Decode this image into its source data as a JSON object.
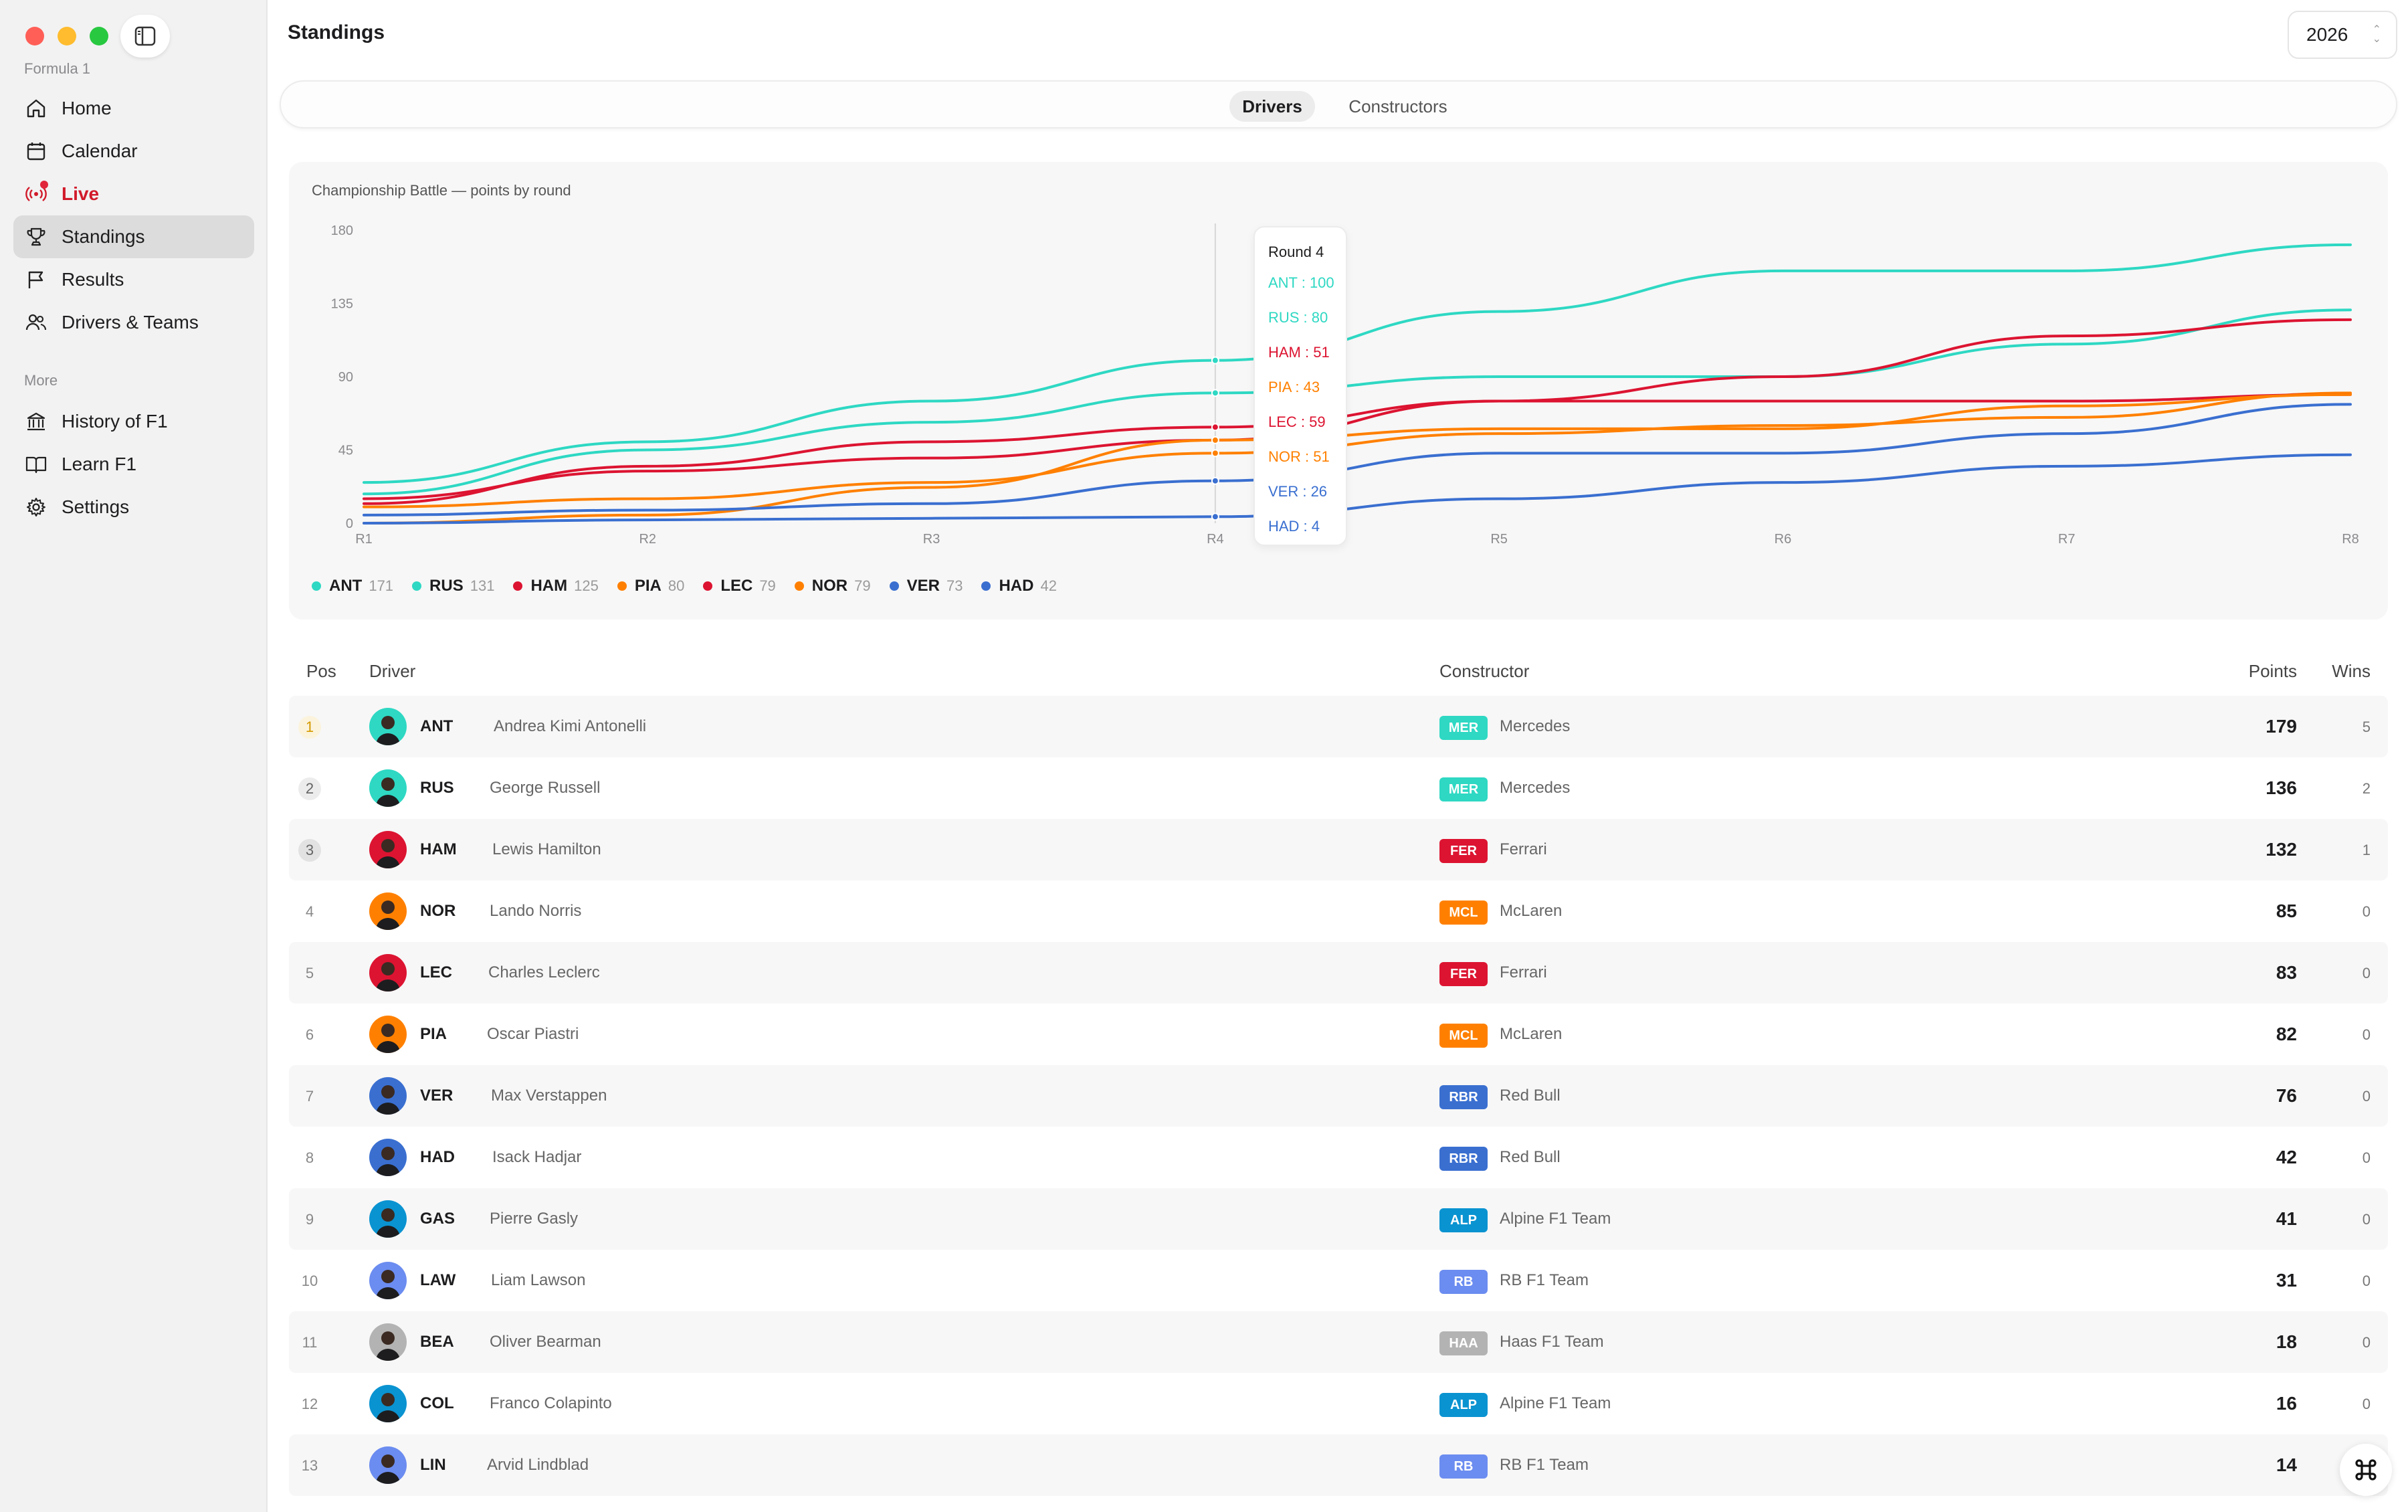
{
  "sidebar": {
    "app_name": "Formula 1",
    "nav": [
      {
        "label": "Home",
        "icon": "home-icon"
      },
      {
        "label": "Calendar",
        "icon": "calendar-icon"
      },
      {
        "label": "Live",
        "icon": "broadcast-icon"
      },
      {
        "label": "Standings",
        "icon": "trophy-icon"
      },
      {
        "label": "Results",
        "icon": "flag-icon"
      },
      {
        "label": "Drivers & Teams",
        "icon": "people-icon"
      }
    ],
    "more_label": "More",
    "more": [
      {
        "label": "History of F1",
        "icon": "museum-icon"
      },
      {
        "label": "Learn F1",
        "icon": "book-icon"
      },
      {
        "label": "Settings",
        "icon": "gear-icon"
      }
    ]
  },
  "header": {
    "title": "Standings",
    "year": "2026"
  },
  "tabs": {
    "drivers": "Drivers",
    "constructors": "Constructors"
  },
  "chart_data": {
    "type": "line",
    "title": "Championship Battle — points by round",
    "x": [
      "R1",
      "R2",
      "R3",
      "R4",
      "R5",
      "R6",
      "R7",
      "R8"
    ],
    "y_ticks": [
      "0",
      "45",
      "90",
      "135",
      "180"
    ],
    "ylim": [
      0,
      180
    ],
    "grid": false,
    "legend": "bottom-left",
    "series": [
      {
        "name": "ANT",
        "total": "171",
        "color": "#2ed8c3",
        "values": [
          25,
          50,
          75,
          100,
          130,
          155,
          155,
          171
        ]
      },
      {
        "name": "RUS",
        "total": "131",
        "color": "#2ed8c3",
        "values": [
          18,
          45,
          62,
          80,
          90,
          90,
          110,
          131
        ]
      },
      {
        "name": "HAM",
        "total": "125",
        "color": "#dc1431",
        "values": [
          15,
          32,
          40,
          51,
          75,
          90,
          115,
          125
        ]
      },
      {
        "name": "PIA",
        "total": "80",
        "color": "#ff8000",
        "values": [
          10,
          15,
          25,
          43,
          55,
          60,
          65,
          80
        ]
      },
      {
        "name": "LEC",
        "total": "79",
        "color": "#dc1431",
        "values": [
          12,
          35,
          50,
          59,
          75,
          75,
          75,
          79
        ]
      },
      {
        "name": "NOR",
        "total": "79",
        "color": "#ff8000",
        "values": [
          0,
          5,
          22,
          51,
          58,
          58,
          72,
          79
        ]
      },
      {
        "name": "VER",
        "total": "73",
        "color": "#3a6fd0",
        "values": [
          5,
          8,
          12,
          26,
          43,
          43,
          55,
          73
        ]
      },
      {
        "name": "HAD",
        "total": "42",
        "color": "#3a6fd0",
        "values": [
          0,
          2,
          3,
          4,
          15,
          25,
          35,
          42
        ]
      }
    ],
    "tooltip": {
      "title": "Round 4",
      "rows": [
        "ANT : 100",
        "RUS : 80",
        "HAM : 51",
        "PIA : 43",
        "LEC : 59",
        "NOR : 51",
        "VER : 26",
        "HAD : 4"
      ]
    }
  },
  "table": {
    "headers": {
      "pos": "Pos",
      "driver": "Driver",
      "constructor": "Constructor",
      "points": "Points",
      "wins": "Wins"
    },
    "rows": [
      {
        "pos": "1",
        "code": "ANT",
        "name": "Andrea Kimi Antonelli",
        "team_code": "MER",
        "team": "Mercedes",
        "team_color": "#2ed8c3",
        "points": "179",
        "wins": "5"
      },
      {
        "pos": "2",
        "code": "RUS",
        "name": "George Russell",
        "team_code": "MER",
        "team": "Mercedes",
        "team_color": "#2ed8c3",
        "points": "136",
        "wins": "2"
      },
      {
        "pos": "3",
        "code": "HAM",
        "name": "Lewis Hamilton",
        "team_code": "FER",
        "team": "Ferrari",
        "team_color": "#dc1431",
        "points": "132",
        "wins": "1"
      },
      {
        "pos": "4",
        "code": "NOR",
        "name": "Lando Norris",
        "team_code": "MCL",
        "team": "McLaren",
        "team_color": "#ff8000",
        "points": "85",
        "wins": "0"
      },
      {
        "pos": "5",
        "code": "LEC",
        "name": "Charles Leclerc",
        "team_code": "FER",
        "team": "Ferrari",
        "team_color": "#dc1431",
        "points": "83",
        "wins": "0"
      },
      {
        "pos": "6",
        "code": "PIA",
        "name": "Oscar Piastri",
        "team_code": "MCL",
        "team": "McLaren",
        "team_color": "#ff8000",
        "points": "82",
        "wins": "0"
      },
      {
        "pos": "7",
        "code": "VER",
        "name": "Max Verstappen",
        "team_code": "RBR",
        "team": "Red Bull",
        "team_color": "#3a6fd0",
        "points": "76",
        "wins": "0"
      },
      {
        "pos": "8",
        "code": "HAD",
        "name": "Isack Hadjar",
        "team_code": "RBR",
        "team": "Red Bull",
        "team_color": "#3a6fd0",
        "points": "42",
        "wins": "0"
      },
      {
        "pos": "9",
        "code": "GAS",
        "name": "Pierre Gasly",
        "team_code": "ALP",
        "team": "Alpine F1 Team",
        "team_color": "#0a93d1",
        "points": "41",
        "wins": "0"
      },
      {
        "pos": "10",
        "code": "LAW",
        "name": "Liam Lawson",
        "team_code": "RB",
        "team": "RB F1 Team",
        "team_color": "#6b8cf0",
        "points": "31",
        "wins": "0"
      },
      {
        "pos": "11",
        "code": "BEA",
        "name": "Oliver Bearman",
        "team_code": "HAA",
        "team": "Haas F1 Team",
        "team_color": "#b3b3b3",
        "points": "18",
        "wins": "0"
      },
      {
        "pos": "12",
        "code": "COL",
        "name": "Franco Colapinto",
        "team_code": "ALP",
        "team": "Alpine F1 Team",
        "team_color": "#0a93d1",
        "points": "16",
        "wins": "0"
      },
      {
        "pos": "13",
        "code": "LIN",
        "name": "Arvid Lindblad",
        "team_code": "RB",
        "team": "RB F1 Team",
        "team_color": "#6b8cf0",
        "points": "14",
        "wins": "0"
      }
    ]
  }
}
